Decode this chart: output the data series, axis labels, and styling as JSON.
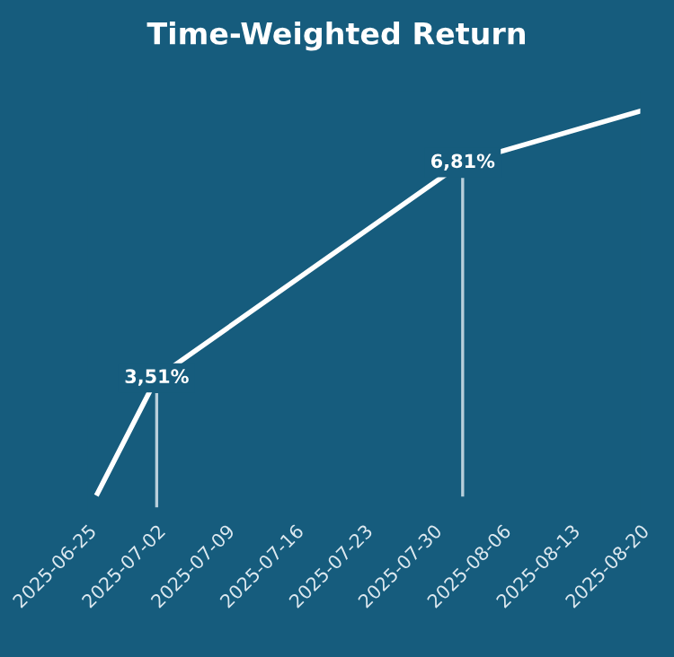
{
  "chart_data": {
    "type": "line",
    "title": "Time-Weighted Return",
    "x": [
      "2025-06-26",
      "2025-07-02",
      "2025-08-02",
      "2025-08-20"
    ],
    "series": [
      {
        "color": "#ffffff",
        "values": [
          1.74,
          3.51,
          6.81,
          7.6
        ],
        "value_labels": [
          null,
          "3,51%",
          "6,81%",
          null
        ]
      }
    ],
    "xlim": [
      "2025-06-25",
      "2025-08-20"
    ],
    "xticks": [
      "2025-06-25",
      "2025-07-02",
      "2025-07-09",
      "2025-07-16",
      "2025-07-23",
      "2025-07-30",
      "2025-08-06",
      "2025-08-13",
      "2025-08-20"
    ],
    "ref_lines": [
      {
        "axis": "x",
        "value": "2025-07-02",
        "color": "#b9cfdb"
      },
      {
        "axis": "x",
        "value": "2025-08-02",
        "color": "#b9cfdb"
      }
    ],
    "tick_labels": "x",
    "grid": false,
    "legend": false,
    "line_style": "solid"
  }
}
